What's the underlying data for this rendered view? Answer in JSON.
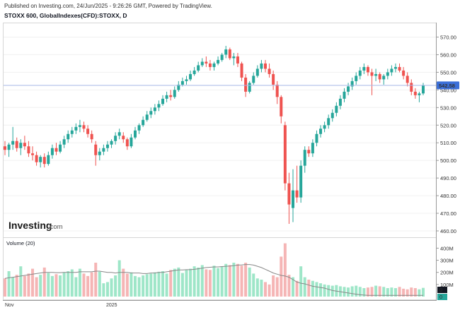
{
  "header": {
    "published": "Published on Investing.com, 24/Jun/2025 - 9:26:26 GMT, Powered by TradingView.",
    "symbol": "STOXX 600, GlobalIndexes(CFD):STOXX, D"
  },
  "logo": {
    "word": "Investing",
    "suffix": ".com"
  },
  "colors": {
    "up": "#26a69a",
    "down": "#ef5350",
    "up_vol": "#9ee6c8",
    "down_vol": "#f5b5b5",
    "ma": "#888888",
    "last_price": "#3b6fd8",
    "last_price_line": "#a8b8e8"
  },
  "chart_data": [
    {
      "type": "candlestick",
      "y_ticks": [
        "570.00",
        "560.00",
        "550.00",
        "540.00",
        "530.00",
        "520.00",
        "510.00",
        "500.00",
        "490.00",
        "480.00",
        "470.00",
        "460.00"
      ],
      "ylim": [
        458,
        575
      ],
      "x_ticks": [
        "Nov",
        "2025"
      ],
      "last_price": "542.58",
      "series": [
        {
          "o": 508,
          "h": 511,
          "l": 503,
          "c": 506
        },
        {
          "o": 506,
          "h": 510,
          "l": 502,
          "c": 509
        },
        {
          "o": 509,
          "h": 519,
          "l": 506,
          "c": 511
        },
        {
          "o": 511,
          "h": 513,
          "l": 505,
          "c": 507
        },
        {
          "o": 507,
          "h": 512,
          "l": 503,
          "c": 510
        },
        {
          "o": 510,
          "h": 514,
          "l": 506,
          "c": 508
        },
        {
          "o": 508,
          "h": 511,
          "l": 502,
          "c": 504
        },
        {
          "o": 504,
          "h": 508,
          "l": 500,
          "c": 503
        },
        {
          "o": 503,
          "h": 505,
          "l": 497,
          "c": 499
        },
        {
          "o": 499,
          "h": 503,
          "l": 496,
          "c": 502
        },
        {
          "o": 502,
          "h": 504,
          "l": 496,
          "c": 498
        },
        {
          "o": 498,
          "h": 505,
          "l": 497,
          "c": 503
        },
        {
          "o": 503,
          "h": 509,
          "l": 501,
          "c": 507
        },
        {
          "o": 507,
          "h": 510,
          "l": 503,
          "c": 505
        },
        {
          "o": 505,
          "h": 511,
          "l": 504,
          "c": 509
        },
        {
          "o": 509,
          "h": 514,
          "l": 507,
          "c": 512
        },
        {
          "o": 512,
          "h": 517,
          "l": 510,
          "c": 515
        },
        {
          "o": 515,
          "h": 519,
          "l": 513,
          "c": 517
        },
        {
          "o": 517,
          "h": 521,
          "l": 515,
          "c": 519
        },
        {
          "o": 519,
          "h": 523,
          "l": 516,
          "c": 520
        },
        {
          "o": 520,
          "h": 522,
          "l": 516,
          "c": 518
        },
        {
          "o": 518,
          "h": 520,
          "l": 513,
          "c": 515
        },
        {
          "o": 515,
          "h": 517,
          "l": 510,
          "c": 512
        },
        {
          "o": 509,
          "h": 511,
          "l": 497,
          "c": 503
        },
        {
          "o": 503,
          "h": 507,
          "l": 500,
          "c": 505
        },
        {
          "o": 505,
          "h": 509,
          "l": 503,
          "c": 507
        },
        {
          "o": 507,
          "h": 511,
          "l": 505,
          "c": 509
        },
        {
          "o": 509,
          "h": 512,
          "l": 507,
          "c": 511
        },
        {
          "o": 511,
          "h": 516,
          "l": 509,
          "c": 514
        },
        {
          "o": 514,
          "h": 518,
          "l": 512,
          "c": 516
        },
        {
          "o": 514,
          "h": 516,
          "l": 510,
          "c": 512
        },
        {
          "o": 512,
          "h": 513,
          "l": 506,
          "c": 508
        },
        {
          "o": 508,
          "h": 515,
          "l": 507,
          "c": 513
        },
        {
          "o": 513,
          "h": 519,
          "l": 512,
          "c": 517
        },
        {
          "o": 517,
          "h": 521,
          "l": 515,
          "c": 520
        },
        {
          "o": 520,
          "h": 525,
          "l": 519,
          "c": 523
        },
        {
          "o": 523,
          "h": 528,
          "l": 522,
          "c": 526
        },
        {
          "o": 526,
          "h": 530,
          "l": 524,
          "c": 528
        },
        {
          "o": 528,
          "h": 532,
          "l": 526,
          "c": 530
        },
        {
          "o": 530,
          "h": 534,
          "l": 528,
          "c": 532
        },
        {
          "o": 532,
          "h": 537,
          "l": 531,
          "c": 535
        },
        {
          "o": 535,
          "h": 539,
          "l": 533,
          "c": 537
        },
        {
          "o": 537,
          "h": 540,
          "l": 534,
          "c": 536
        },
        {
          "o": 536,
          "h": 542,
          "l": 535,
          "c": 540
        },
        {
          "o": 540,
          "h": 545,
          "l": 539,
          "c": 543
        },
        {
          "o": 543,
          "h": 547,
          "l": 542,
          "c": 545
        },
        {
          "o": 545,
          "h": 548,
          "l": 543,
          "c": 546
        },
        {
          "o": 546,
          "h": 551,
          "l": 545,
          "c": 549
        },
        {
          "o": 549,
          "h": 553,
          "l": 548,
          "c": 551
        },
        {
          "o": 551,
          "h": 556,
          "l": 550,
          "c": 554
        },
        {
          "o": 554,
          "h": 558,
          "l": 553,
          "c": 556
        },
        {
          "o": 556,
          "h": 559,
          "l": 553,
          "c": 555
        },
        {
          "o": 555,
          "h": 557,
          "l": 551,
          "c": 553
        },
        {
          "o": 553,
          "h": 556,
          "l": 551,
          "c": 555
        },
        {
          "o": 555,
          "h": 559,
          "l": 554,
          "c": 557
        },
        {
          "o": 557,
          "h": 561,
          "l": 556,
          "c": 560
        },
        {
          "o": 560,
          "h": 565,
          "l": 558,
          "c": 563
        },
        {
          "o": 563,
          "h": 564,
          "l": 557,
          "c": 558
        },
        {
          "o": 558,
          "h": 561,
          "l": 554,
          "c": 559
        },
        {
          "o": 559,
          "h": 561,
          "l": 553,
          "c": 555
        },
        {
          "o": 555,
          "h": 556,
          "l": 545,
          "c": 547
        },
        {
          "o": 547,
          "h": 549,
          "l": 536,
          "c": 539
        },
        {
          "o": 539,
          "h": 545,
          "l": 538,
          "c": 544
        },
        {
          "o": 544,
          "h": 550,
          "l": 543,
          "c": 548
        },
        {
          "o": 548,
          "h": 554,
          "l": 547,
          "c": 552
        },
        {
          "o": 552,
          "h": 557,
          "l": 550,
          "c": 555
        },
        {
          "o": 555,
          "h": 557,
          "l": 550,
          "c": 552
        },
        {
          "o": 552,
          "h": 555,
          "l": 547,
          "c": 549
        },
        {
          "o": 549,
          "h": 551,
          "l": 540,
          "c": 543
        },
        {
          "o": 543,
          "h": 545,
          "l": 532,
          "c": 536
        },
        {
          "o": 536,
          "h": 537,
          "l": 521,
          "c": 525
        },
        {
          "o": 520,
          "h": 522,
          "l": 483,
          "c": 487
        },
        {
          "o": 487,
          "h": 493,
          "l": 464,
          "c": 475
        },
        {
          "o": 473,
          "h": 495,
          "l": 465,
          "c": 483
        },
        {
          "o": 483,
          "h": 497,
          "l": 476,
          "c": 479
        },
        {
          "o": 479,
          "h": 500,
          "l": 476,
          "c": 497
        },
        {
          "o": 497,
          "h": 508,
          "l": 493,
          "c": 506
        },
        {
          "o": 506,
          "h": 508,
          "l": 502,
          "c": 504
        },
        {
          "o": 504,
          "h": 512,
          "l": 502,
          "c": 510
        },
        {
          "o": 510,
          "h": 517,
          "l": 508,
          "c": 515
        },
        {
          "o": 515,
          "h": 520,
          "l": 513,
          "c": 518
        },
        {
          "o": 518,
          "h": 522,
          "l": 516,
          "c": 520
        },
        {
          "o": 520,
          "h": 526,
          "l": 518,
          "c": 524
        },
        {
          "o": 524,
          "h": 529,
          "l": 522,
          "c": 527
        },
        {
          "o": 527,
          "h": 533,
          "l": 525,
          "c": 531
        },
        {
          "o": 531,
          "h": 537,
          "l": 529,
          "c": 535
        },
        {
          "o": 535,
          "h": 541,
          "l": 533,
          "c": 539
        },
        {
          "o": 539,
          "h": 544,
          "l": 537,
          "c": 542
        },
        {
          "o": 542,
          "h": 547,
          "l": 540,
          "c": 545
        },
        {
          "o": 545,
          "h": 550,
          "l": 543,
          "c": 548
        },
        {
          "o": 548,
          "h": 553,
          "l": 546,
          "c": 551
        },
        {
          "o": 551,
          "h": 555,
          "l": 549,
          "c": 553
        },
        {
          "o": 553,
          "h": 554,
          "l": 548,
          "c": 550
        },
        {
          "o": 550,
          "h": 552,
          "l": 537,
          "c": 548
        },
        {
          "o": 548,
          "h": 552,
          "l": 545,
          "c": 549
        },
        {
          "o": 549,
          "h": 550,
          "l": 544,
          "c": 546
        },
        {
          "o": 546,
          "h": 549,
          "l": 543,
          "c": 548
        },
        {
          "o": 548,
          "h": 552,
          "l": 546,
          "c": 550
        },
        {
          "o": 550,
          "h": 554,
          "l": 548,
          "c": 552
        },
        {
          "o": 552,
          "h": 555,
          "l": 550,
          "c": 553
        },
        {
          "o": 553,
          "h": 555,
          "l": 550,
          "c": 551
        },
        {
          "o": 551,
          "h": 553,
          "l": 546,
          "c": 548
        },
        {
          "o": 548,
          "h": 550,
          "l": 542,
          "c": 544
        },
        {
          "o": 544,
          "h": 546,
          "l": 537,
          "c": 539
        },
        {
          "o": 539,
          "h": 541,
          "l": 535,
          "c": 537
        },
        {
          "o": 537,
          "h": 539,
          "l": 533,
          "c": 538
        },
        {
          "o": 538,
          "h": 544,
          "l": 537,
          "c": 542.58
        }
      ]
    },
    {
      "type": "bar",
      "title": "Volume (20)",
      "y_ticks": [
        "400M",
        "300M",
        "200M",
        "100M",
        "0"
      ],
      "ylim": [
        0,
        420
      ],
      "volumes": [
        150,
        210,
        160,
        180,
        250,
        170,
        190,
        230,
        160,
        180,
        240,
        195,
        170,
        185,
        175,
        200,
        210,
        225,
        160,
        230,
        190,
        170,
        200,
        280,
        205,
        110,
        120,
        150,
        175,
        300,
        230,
        190,
        200,
        170,
        160,
        175,
        185,
        190,
        200,
        205,
        210,
        190,
        220,
        230,
        240,
        195,
        220,
        230,
        250,
        240,
        260,
        225,
        220,
        255,
        235,
        250,
        270,
        260,
        280,
        270,
        255,
        280,
        240,
        190,
        150,
        140,
        120,
        100,
        175,
        160,
        330,
        440,
        180,
        160,
        130,
        250,
        160,
        140,
        130,
        120,
        110,
        100,
        95,
        90,
        95,
        85,
        80,
        75,
        85,
        90,
        80,
        70,
        75,
        80,
        90,
        85,
        80,
        70,
        75,
        70,
        80,
        65,
        60,
        75,
        70,
        60,
        72
      ],
      "ma": [
        150,
        155,
        160,
        165,
        170,
        175,
        180,
        185,
        190,
        195,
        200,
        200,
        200,
        198,
        198,
        200,
        200,
        200,
        200,
        205,
        205,
        205,
        205,
        210,
        210,
        205,
        200,
        200,
        195,
        200,
        200,
        200,
        195,
        195,
        195,
        190,
        190,
        195,
        195,
        200,
        200,
        205,
        210,
        215,
        220,
        220,
        222,
        222,
        225,
        230,
        235,
        240,
        242,
        245,
        245,
        248,
        250,
        252,
        255,
        260,
        262,
        265,
        265,
        260,
        250,
        240,
        225,
        210,
        195,
        185,
        175,
        170,
        160,
        140,
        120,
        110,
        105,
        95,
        85,
        80,
        75,
        70,
        60,
        50,
        45,
        40,
        35,
        30,
        25,
        20,
        15,
        12,
        10,
        10,
        10,
        10,
        10,
        10,
        10,
        10,
        10,
        10,
        10,
        10,
        10,
        10,
        10
      ]
    }
  ]
}
